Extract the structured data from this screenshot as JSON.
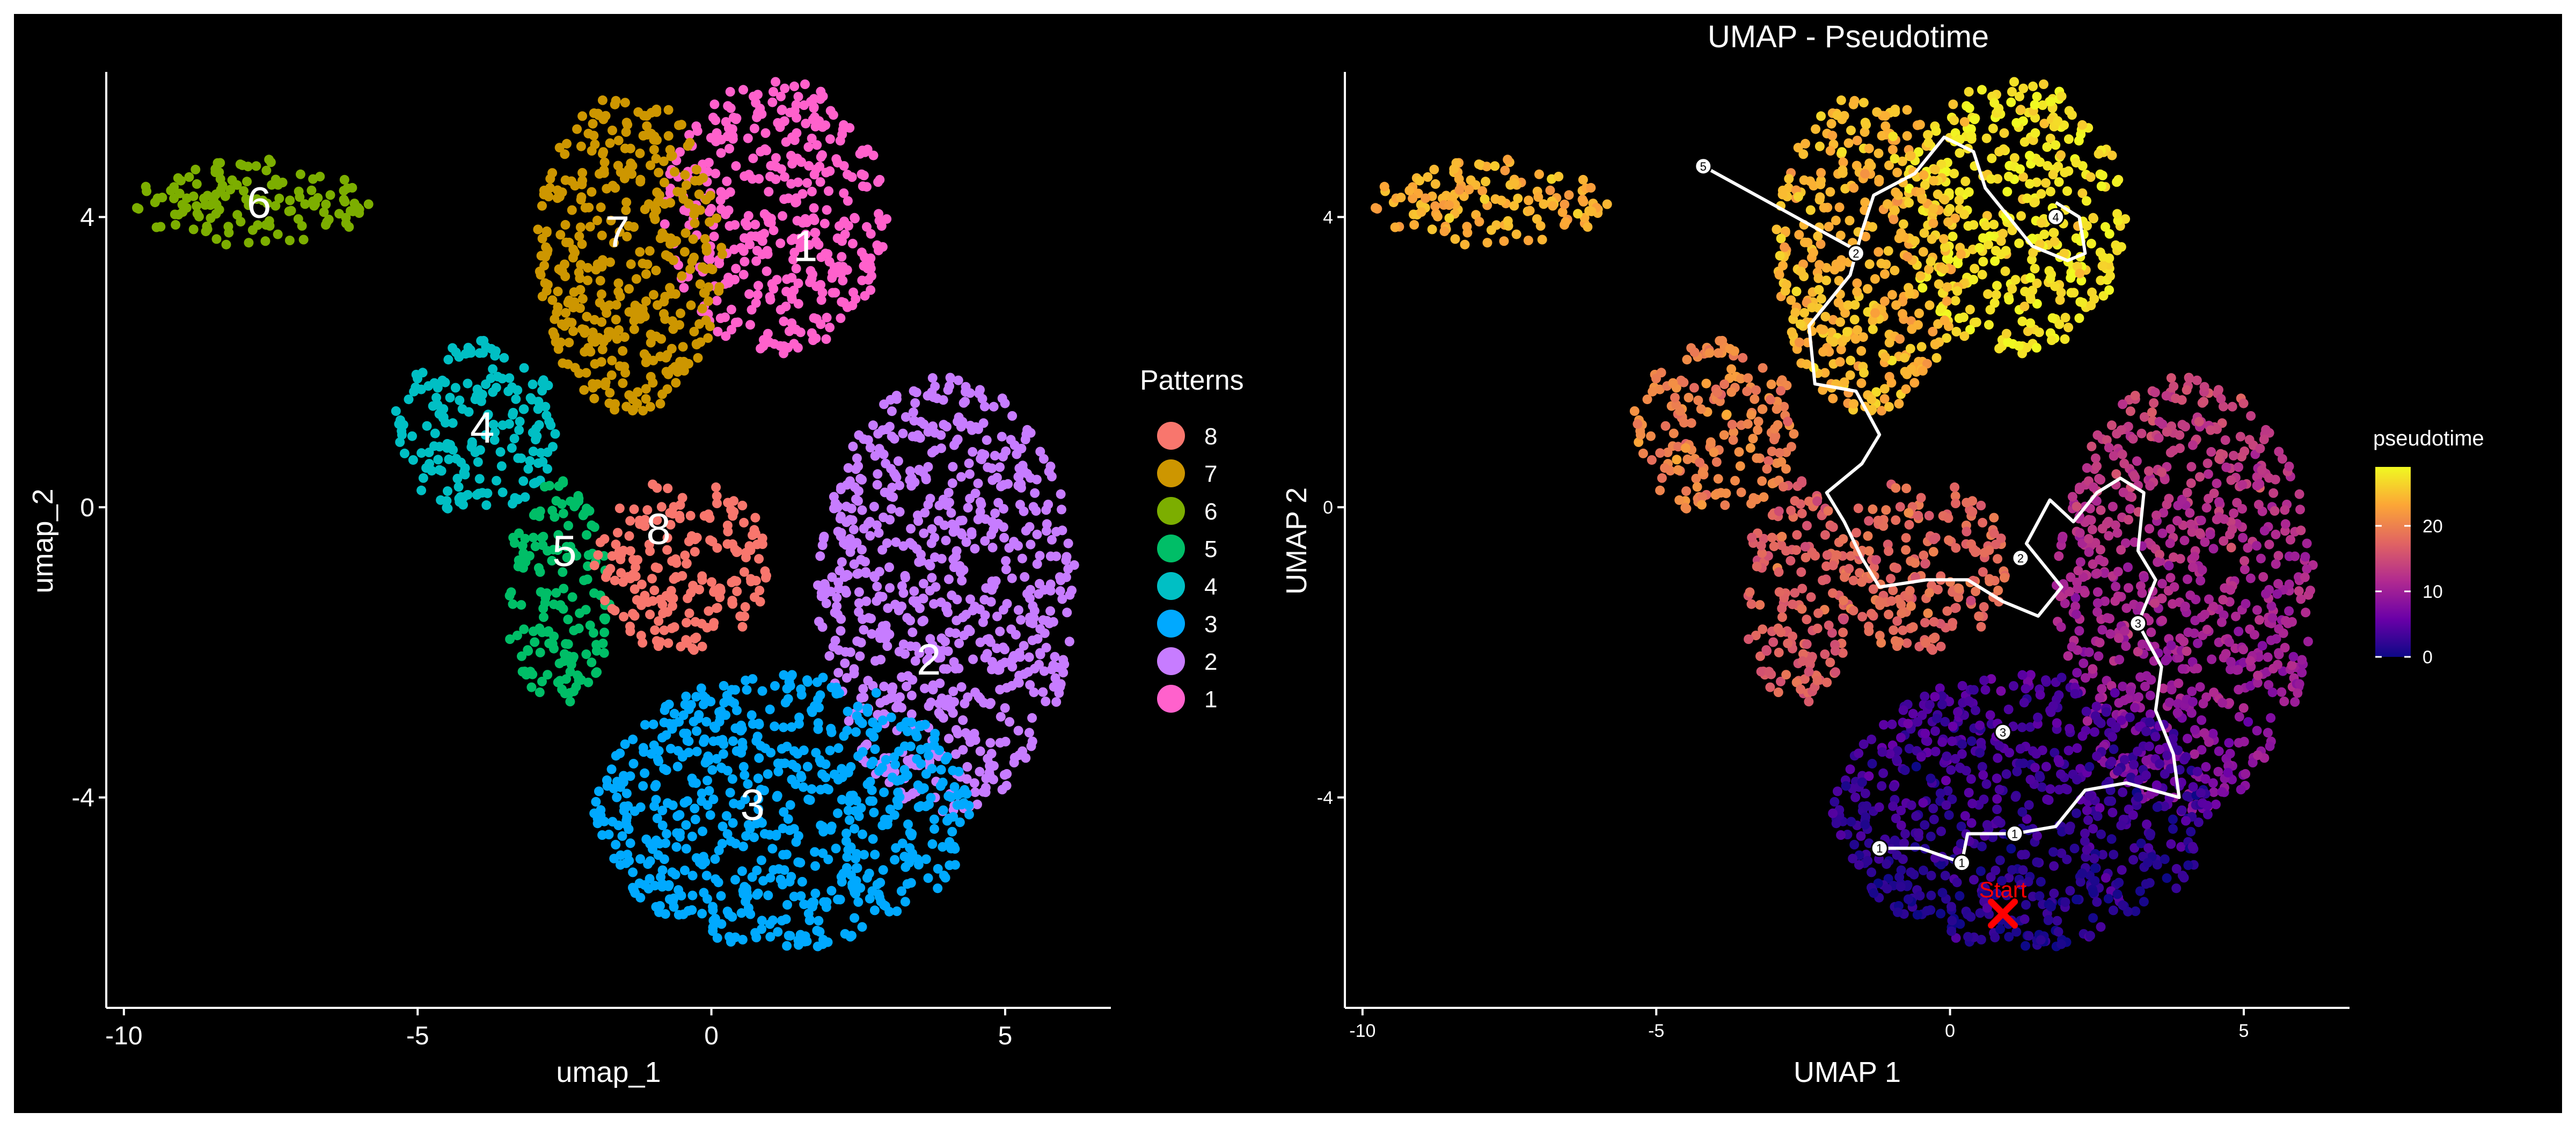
{
  "figure": {
    "background": "#000000",
    "frame_color": "#ffffff"
  },
  "chart_data": [
    {
      "type": "scatter",
      "title": "",
      "xlabel": "umap_1",
      "ylabel": "umap_2",
      "xlim": [
        -10.3,
        6.8
      ],
      "ylim": [
        -6.9,
        6.0
      ],
      "xticks": [
        -10,
        -5,
        0,
        5
      ],
      "xtick_labels": [
        "-10",
        "-5",
        "0",
        "5"
      ],
      "yticks": [
        -4,
        0,
        4
      ],
      "ytick_labels": [
        "-4",
        "0",
        "4"
      ],
      "grid": false,
      "legend": {
        "title": "Patterns",
        "placement": "right",
        "entries": [
          {
            "label": "8",
            "color": "#F8766D"
          },
          {
            "label": "7",
            "color": "#CD9600"
          },
          {
            "label": "6",
            "color": "#7CAE00"
          },
          {
            "label": "5",
            "color": "#00BE67"
          },
          {
            "label": "4",
            "color": "#00BFC4"
          },
          {
            "label": "3",
            "color": "#00A9FF"
          },
          {
            "label": "2",
            "color": "#C77CFF"
          },
          {
            "label": "1",
            "color": "#FF61CC"
          }
        ]
      },
      "clusters": [
        {
          "name": "1",
          "color": "#FF61CC",
          "label_xy": [
            1.6,
            3.6
          ],
          "regions": [
            [
              1.1,
              4.0,
              1.9,
              1.9
            ]
          ]
        },
        {
          "name": "2",
          "color": "#C77CFF",
          "label_xy": [
            3.7,
            -2.1
          ],
          "regions": [
            [
              4.0,
              -1.2,
              2.2,
              3.0
            ]
          ]
        },
        {
          "name": "3",
          "color": "#00A9FF",
          "label_xy": [
            0.7,
            -4.1
          ],
          "regions": [
            [
              1.2,
              -4.2,
              3.2,
              1.9
            ]
          ]
        },
        {
          "name": "4",
          "color": "#00BFC4",
          "label_xy": [
            -3.9,
            1.1
          ],
          "regions": [
            [
              -4.0,
              1.1,
              1.4,
              1.2
            ]
          ]
        },
        {
          "name": "5",
          "color": "#00BE67",
          "label_xy": [
            -2.5,
            -0.6
          ],
          "regions": [
            [
              -2.6,
              -1.2,
              0.9,
              1.6
            ]
          ]
        },
        {
          "name": "6",
          "color": "#7CAE00",
          "label_xy": [
            -7.7,
            4.2
          ],
          "regions": [
            [
              -7.8,
              4.2,
              2.0,
              0.6
            ]
          ]
        },
        {
          "name": "7",
          "color": "#CD9600",
          "label_xy": [
            -1.6,
            3.8
          ],
          "regions": [
            [
              -1.4,
              3.5,
              1.6,
              2.2
            ]
          ]
        },
        {
          "name": "8",
          "color": "#F8766D",
          "label_xy": [
            -0.9,
            -0.3
          ],
          "regions": [
            [
              -0.5,
              -0.8,
              1.5,
              1.2
            ]
          ]
        }
      ]
    },
    {
      "type": "scatter",
      "title": "UMAP - Pseudotime",
      "xlabel": "UMAP 1",
      "ylabel": "UMAP 2",
      "xlim": [
        -10.3,
        6.8
      ],
      "ylim": [
        -6.9,
        6.0
      ],
      "xticks": [
        -10,
        -5,
        0,
        5
      ],
      "xtick_labels": [
        "-10",
        "-5",
        "0",
        "5"
      ],
      "yticks": [
        -4,
        0,
        4
      ],
      "ytick_labels": [
        "-4",
        "0",
        "4"
      ],
      "grid": false,
      "colorbar": {
        "title": "pseudotime",
        "range": [
          0,
          29
        ],
        "ticks": [
          0,
          10,
          20
        ],
        "tick_labels": [
          "0",
          "10",
          "20"
        ],
        "colors": [
          "#0d0887",
          "#6a00a8",
          "#b12a90",
          "#e16462",
          "#fca636",
          "#f0f921"
        ]
      },
      "trajectory": [
        [
          -1.2,
          -4.7
        ],
        [
          -0.5,
          -4.7
        ],
        [
          0.2,
          -4.9
        ],
        [
          0.3,
          -4.5
        ],
        [
          1.1,
          -4.5
        ],
        [
          1.8,
          -4.4
        ],
        [
          2.3,
          -3.9
        ],
        [
          3.0,
          -3.8
        ],
        [
          3.9,
          -4.0
        ],
        [
          3.8,
          -3.4
        ],
        [
          3.5,
          -2.8
        ],
        [
          3.6,
          -2.2
        ],
        [
          3.2,
          -1.6
        ],
        [
          3.5,
          -1.0
        ],
        [
          3.2,
          -0.6
        ],
        [
          3.3,
          0.2
        ],
        [
          2.9,
          0.4
        ],
        [
          2.5,
          0.2
        ],
        [
          2.1,
          -0.2
        ],
        [
          1.7,
          0.1
        ],
        [
          1.3,
          -0.5
        ],
        [
          1.9,
          -1.1
        ],
        [
          1.5,
          -1.5
        ],
        [
          0.9,
          -1.3
        ],
        [
          0.3,
          -1.0
        ],
        [
          -0.4,
          -1.0
        ],
        [
          -1.2,
          -1.1
        ],
        [
          -1.5,
          -0.7
        ],
        [
          -1.8,
          -0.2
        ],
        [
          -2.1,
          0.2
        ],
        [
          -1.5,
          0.6
        ],
        [
          -1.2,
          1.0
        ],
        [
          -1.6,
          1.6
        ],
        [
          -2.3,
          1.7
        ],
        [
          -2.4,
          2.5
        ],
        [
          -1.7,
          3.2
        ],
        [
          -1.5,
          3.8
        ],
        [
          -1.3,
          4.3
        ],
        [
          -0.6,
          4.6
        ],
        [
          -0.1,
          5.1
        ],
        [
          0.4,
          4.9
        ],
        [
          0.6,
          4.4
        ],
        [
          1.0,
          4.0
        ],
        [
          1.4,
          3.6
        ],
        [
          2.0,
          3.4
        ],
        [
          2.3,
          3.5
        ],
        [
          2.2,
          4.0
        ],
        [
          1.8,
          4.2
        ]
      ],
      "branch_start": [
        -1.5,
        3.5
      ],
      "branch_end": [
        -4.2,
        4.7
      ],
      "milestones": [
        {
          "label": "1",
          "xy": [
            -1.2,
            -4.7
          ]
        },
        {
          "label": "1",
          "xy": [
            0.2,
            -4.9
          ]
        },
        {
          "label": "1",
          "xy": [
            1.1,
            -4.5
          ]
        },
        {
          "label": "2",
          "xy": [
            1.2,
            -0.7
          ]
        },
        {
          "label": "3",
          "xy": [
            3.2,
            -1.6
          ]
        },
        {
          "label": "3",
          "xy": [
            0.9,
            -3.1
          ]
        },
        {
          "label": "2",
          "xy": [
            -1.6,
            3.5
          ]
        },
        {
          "label": "4",
          "xy": [
            1.8,
            4.0
          ]
        },
        {
          "label": "5",
          "xy": [
            -4.2,
            4.7
          ]
        }
      ],
      "start_marker": {
        "label": "Start",
        "xy": [
          0.9,
          -5.6
        ],
        "color": "#ff0000"
      }
    }
  ]
}
